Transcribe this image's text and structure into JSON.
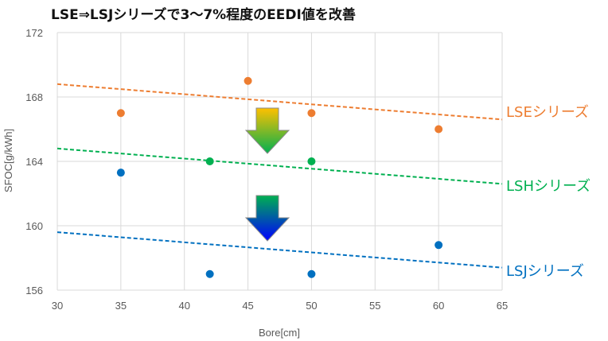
{
  "title": "LSE⇒LSJシリーズで3〜7%程度のEEDI値を改善",
  "chart_data": {
    "type": "scatter",
    "title": "LSE⇒LSJシリーズで3〜7%程度のEEDI値を改善",
    "xlabel": "Bore[cm]",
    "ylabel": "SFOC[g/kWh]",
    "xlim": [
      30,
      65
    ],
    "ylim": [
      156,
      172
    ],
    "xticks": [
      30,
      35,
      40,
      45,
      50,
      55,
      60,
      65
    ],
    "yticks": [
      156,
      160,
      164,
      168,
      172
    ],
    "grid": true,
    "series": [
      {
        "name": "LSEシリーズ",
        "color": "#ED7D31",
        "points": [
          [
            35,
            167
          ],
          [
            45,
            169
          ],
          [
            50,
            167
          ],
          [
            60,
            166
          ]
        ],
        "trend": [
          [
            30,
            168.8
          ],
          [
            65,
            166.6
          ]
        ]
      },
      {
        "name": "LSHシリーズ",
        "color": "#00B050",
        "points": [
          [
            42,
            164
          ],
          [
            50,
            164
          ]
        ],
        "trend": [
          [
            30,
            164.8
          ],
          [
            65,
            162.6
          ]
        ]
      },
      {
        "name": "LSJシリーズ",
        "color": "#0070C0",
        "points": [
          [
            35,
            163.3
          ],
          [
            42,
            157
          ],
          [
            50,
            157
          ],
          [
            60,
            158.8
          ]
        ],
        "trend": [
          [
            30,
            159.6
          ],
          [
            65,
            157.4
          ]
        ]
      }
    ],
    "annotations": [
      {
        "type": "down-arrow",
        "gradient": [
          "#FFC000",
          "#00B050"
        ]
      },
      {
        "type": "down-arrow",
        "gradient": [
          "#00B050",
          "#0000FF"
        ]
      }
    ]
  }
}
